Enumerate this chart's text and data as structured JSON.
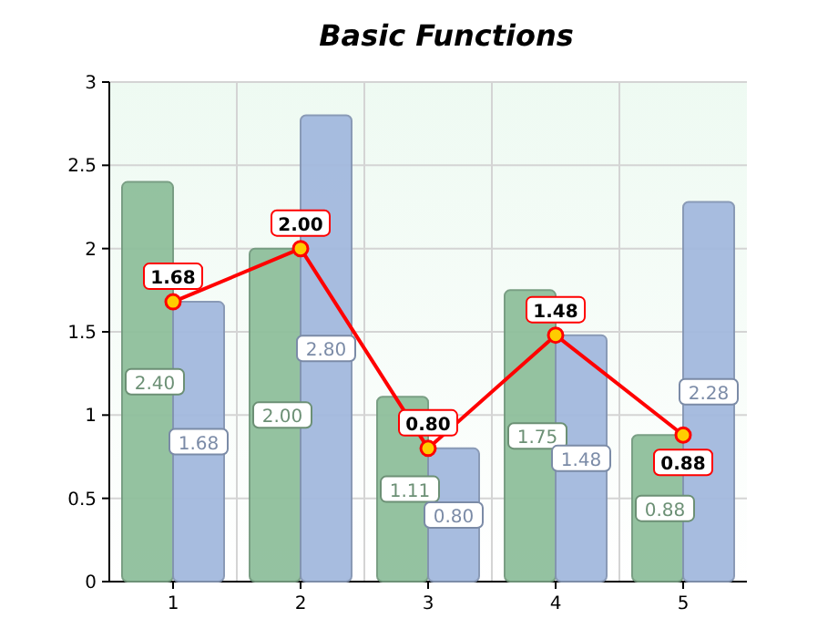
{
  "chart_data": {
    "type": "bar",
    "title": "Basic Functions",
    "categories": [
      "1",
      "2",
      "3",
      "4",
      "5"
    ],
    "series": [
      {
        "color": "#8fbf9c",
        "values": [
          2.4,
          2.0,
          1.11,
          1.75,
          0.88
        ],
        "value_labels": [
          "2.40",
          "2.00",
          "1.11",
          "1.75",
          "0.88"
        ]
      },
      {
        "color": "#a3b9de",
        "values": [
          1.68,
          2.8,
          0.8,
          1.48,
          2.28
        ],
        "value_labels": [
          "1.68",
          "2.80",
          "0.80",
          "1.48",
          "2.28"
        ]
      },
      {
        "type": "line",
        "color": "#ff0000",
        "values": [
          1.68,
          2.0,
          0.8,
          1.48,
          0.88
        ],
        "value_labels": [
          "1.68",
          "2.00",
          "0.80",
          "1.48",
          "0.88"
        ],
        "marker": "circle"
      }
    ],
    "ylim": [
      0,
      3
    ],
    "yticks": [
      0,
      0.5,
      1,
      1.5,
      2,
      2.5,
      3
    ],
    "grid": true
  }
}
